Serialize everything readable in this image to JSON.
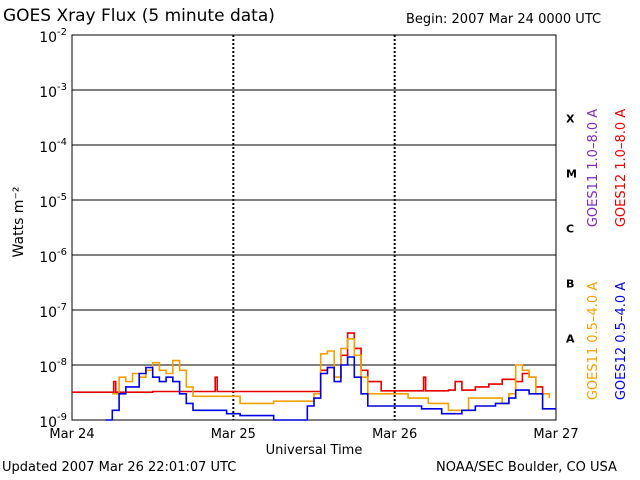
{
  "header": {
    "title": "GOES Xray Flux (5 minute data)",
    "begin": "Begin:  2007 Mar 24 0000 UTC"
  },
  "footer": {
    "updated": "Updated 2007 Mar 26 22:01:07 UTC",
    "credit": "NOAA/SEC Boulder, CO USA"
  },
  "chart_data": {
    "type": "line",
    "title": "GOES Xray Flux (5 minute data)",
    "xlabel": "Universal Time",
    "ylabel": "Watts m⁻²",
    "yscale": "log",
    "ylim": [
      1e-09,
      0.01
    ],
    "xlim": [
      0,
      72
    ],
    "x_unit": "hours since 2007 Mar 24 0000 UTC",
    "grid": true,
    "x_ticks": [
      {
        "x": 0,
        "label": "Mar 24"
      },
      {
        "x": 24,
        "label": "Mar 25"
      },
      {
        "x": 48,
        "label": "Mar 26"
      },
      {
        "x": 72,
        "label": "Mar 27"
      }
    ],
    "y_ticks": [
      {
        "exp": -9,
        "base": "10",
        "sup": "-9"
      },
      {
        "exp": -8,
        "base": "10",
        "sup": "-8"
      },
      {
        "exp": -7,
        "base": "10",
        "sup": "-7"
      },
      {
        "exp": -6,
        "base": "10",
        "sup": "-6"
      },
      {
        "exp": -5,
        "base": "10",
        "sup": "-5"
      },
      {
        "exp": -4,
        "base": "10",
        "sup": "-4"
      },
      {
        "exp": -3,
        "base": "10",
        "sup": "-3"
      },
      {
        "exp": -2,
        "base": "10",
        "sup": "-2"
      }
    ],
    "flare_classes": [
      {
        "label": "A",
        "exp": -7.5
      },
      {
        "label": "B",
        "exp": -6.5
      },
      {
        "label": "C",
        "exp": -5.5
      },
      {
        "label": "M",
        "exp": -4.5
      },
      {
        "label": "X",
        "exp": -3.5
      }
    ],
    "legend": [
      {
        "label": "GOES11 1.0–8.0 A",
        "color": "#7a2bb8"
      },
      {
        "label": "GOES12 1.0–8.0 A",
        "color": "#e00000"
      },
      {
        "label": "GOES11 0.5–4.0 A",
        "color": "#f0a000"
      },
      {
        "label": "GOES12 0.5–4.0 A",
        "color": "#0000e0"
      }
    ],
    "series": [
      {
        "name": "GOES12 1.0–8.0 A",
        "color": "#e00000",
        "points": [
          [
            0,
            3.2e-09
          ],
          [
            6,
            3.2e-09
          ],
          [
            6.2,
            5e-09
          ],
          [
            6.5,
            3.2e-09
          ],
          [
            10,
            3.2e-09
          ],
          [
            12,
            3.3e-09
          ],
          [
            16,
            3.3e-09
          ],
          [
            21,
            3.3e-09
          ],
          [
            21.3,
            6e-09
          ],
          [
            21.6,
            3.3e-09
          ],
          [
            36,
            3.3e-09
          ],
          [
            37,
            8e-09
          ],
          [
            38,
            9e-09
          ],
          [
            39,
            6e-09
          ],
          [
            40,
            1.5e-08
          ],
          [
            41,
            3.8e-08
          ],
          [
            42,
            2e-08
          ],
          [
            43,
            8e-09
          ],
          [
            44,
            5e-09
          ],
          [
            46,
            3.4e-09
          ],
          [
            52,
            3.4e-09
          ],
          [
            52.3,
            6e-09
          ],
          [
            52.6,
            3.4e-09
          ],
          [
            56,
            3.5e-09
          ],
          [
            57,
            5e-09
          ],
          [
            58,
            3.5e-09
          ],
          [
            60,
            4e-09
          ],
          [
            62,
            4.5e-09
          ],
          [
            64,
            5.5e-09
          ],
          [
            66,
            5e-09
          ],
          [
            67,
            7e-09
          ],
          [
            68,
            6e-09
          ],
          [
            69,
            4e-09
          ],
          [
            70,
            3e-09
          ]
        ]
      },
      {
        "name": "GOES11 0.5–4.0 A",
        "color": "#f0a000",
        "points": [
          [
            6,
            3e-09
          ],
          [
            7,
            6e-09
          ],
          [
            8,
            5e-09
          ],
          [
            9,
            7e-09
          ],
          [
            10,
            6e-09
          ],
          [
            11,
            8e-09
          ],
          [
            12,
            1.1e-08
          ],
          [
            13,
            8e-09
          ],
          [
            14,
            7e-09
          ],
          [
            15,
            1.2e-08
          ],
          [
            16,
            8e-09
          ],
          [
            17,
            4e-09
          ],
          [
            18,
            2.7e-09
          ],
          [
            24,
            2.7e-09
          ],
          [
            25,
            2e-09
          ],
          [
            28,
            2e-09
          ],
          [
            30,
            2.2e-09
          ],
          [
            36,
            3e-09
          ],
          [
            37,
            1.6e-08
          ],
          [
            38,
            1.8e-08
          ],
          [
            39,
            6e-09
          ],
          [
            40,
            2e-08
          ],
          [
            41,
            3e-08
          ],
          [
            42,
            1.5e-08
          ],
          [
            43,
            6e-09
          ],
          [
            44,
            3e-09
          ],
          [
            50,
            2.5e-09
          ],
          [
            53,
            2e-09
          ],
          [
            56,
            1.5e-09
          ],
          [
            59,
            2.5e-09
          ],
          [
            64,
            2e-09
          ],
          [
            65,
            3e-09
          ],
          [
            66,
            1e-08
          ],
          [
            67,
            8e-09
          ],
          [
            68,
            6e-09
          ],
          [
            69,
            3e-09
          ],
          [
            71,
            2.5e-09
          ]
        ]
      },
      {
        "name": "GOES12 0.5–4.0 A",
        "color": "#0000e0",
        "points": [
          [
            5,
            1e-09
          ],
          [
            6,
            1.5e-09
          ],
          [
            7,
            3e-09
          ],
          [
            8,
            4e-09
          ],
          [
            9,
            4e-09
          ],
          [
            10,
            7e-09
          ],
          [
            11,
            9e-09
          ],
          [
            12,
            6e-09
          ],
          [
            13,
            5e-09
          ],
          [
            14,
            6e-09
          ],
          [
            15,
            5e-09
          ],
          [
            16,
            3e-09
          ],
          [
            17,
            2e-09
          ],
          [
            18,
            1.5e-09
          ],
          [
            22,
            1.5e-09
          ],
          [
            23,
            1.3e-09
          ],
          [
            25,
            1.2e-09
          ],
          [
            30,
            1e-09
          ],
          [
            35,
            1.8e-09
          ],
          [
            36,
            2.5e-09
          ],
          [
            37,
            7e-09
          ],
          [
            38,
            9e-09
          ],
          [
            39,
            5e-09
          ],
          [
            40,
            1e-08
          ],
          [
            41,
            1.4e-08
          ],
          [
            42,
            6e-09
          ],
          [
            43,
            3e-09
          ],
          [
            44,
            1.8e-09
          ],
          [
            48,
            1.8e-09
          ],
          [
            52,
            1.6e-09
          ],
          [
            55,
            1.3e-09
          ],
          [
            58,
            1.5e-09
          ],
          [
            60,
            1.8e-09
          ],
          [
            63,
            2e-09
          ],
          [
            65,
            2.5e-09
          ],
          [
            66,
            3.5e-09
          ],
          [
            68,
            3e-09
          ],
          [
            70,
            1.6e-09
          ],
          [
            72,
            1.6e-09
          ]
        ]
      }
    ]
  }
}
